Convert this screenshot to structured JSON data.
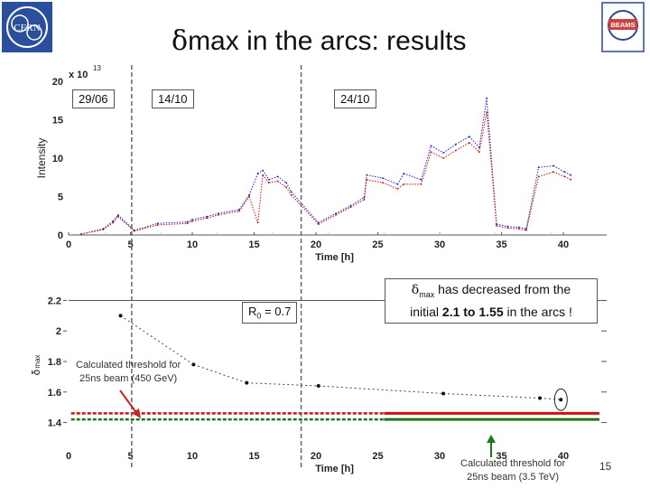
{
  "slide": {
    "title_symbol": "δ",
    "title_rest": "max in the arcs: results",
    "page_number": "15",
    "logos": [
      "cern-logo",
      "beams-logo"
    ],
    "beams_logo_text": "BEAMS",
    "colors": {
      "red": "#d01010",
      "green": "#1a7a1a",
      "blue": "#1f1fd0",
      "dark_red": "#cc2222"
    }
  },
  "date_labels": [
    "29/06",
    "14/10",
    "24/10"
  ],
  "r0_label": {
    "symbol": "R",
    "sub": "0",
    "rest": " = 0.7"
  },
  "note": {
    "symbol": "δ",
    "sub": "max",
    "line1_rest": " has decreased from the",
    "line2_pre": "initial ",
    "v1": "2.1",
    "mid": " to ",
    "v2": "1.55",
    "line2_post": " in the arcs !"
  },
  "threshold_left": {
    "line1": "Calculated threshold for",
    "line2": "25ns beam (450 GeV)"
  },
  "threshold_right": {
    "line1": "Calculated threshold for",
    "line2": "25ns beam (3.5 TeV)"
  },
  "chart_data": [
    {
      "type": "line",
      "xlabel": "Time [h]",
      "ylabel": "Intensity",
      "y_multiplier": "x 10",
      "y_multiplier_exp": "13",
      "xlim": [
        0,
        43.5
      ],
      "ylim": [
        0,
        20
      ],
      "xticks": [
        0,
        5,
        10,
        15,
        20,
        25,
        30,
        35,
        40
      ],
      "yticks": [
        0,
        5,
        10,
        15,
        20
      ],
      "series": [
        {
          "color": "blue",
          "points": [
            [
              1,
              0.1
            ],
            [
              2.8,
              0.8
            ],
            [
              3.6,
              1.8
            ],
            [
              4.0,
              2.6
            ],
            [
              5.3,
              0.6
            ],
            [
              7.2,
              1.5
            ],
            [
              9.6,
              1.7
            ],
            [
              10.0,
              2.0
            ],
            [
              11.2,
              2.4
            ],
            [
              12.1,
              2.8
            ],
            [
              13.8,
              3.3
            ],
            [
              14.6,
              5.2
            ],
            [
              15.3,
              8.0
            ],
            [
              15.7,
              8.4
            ],
            [
              16.2,
              7.2
            ],
            [
              16.9,
              7.6
            ],
            [
              17.6,
              6.8
            ],
            [
              18.0,
              5.6
            ],
            [
              20.2,
              1.6
            ],
            [
              21.6,
              2.8
            ],
            [
              22.8,
              3.8
            ],
            [
              23.9,
              4.9
            ],
            [
              24.1,
              7.8
            ],
            [
              25.4,
              7.4
            ],
            [
              26.6,
              6.6
            ],
            [
              27.1,
              8.0
            ],
            [
              28.5,
              7.2
            ],
            [
              29.3,
              11.6
            ],
            [
              30.3,
              10.7
            ],
            [
              31.3,
              11.8
            ],
            [
              32.4,
              12.8
            ],
            [
              33.2,
              11.4
            ],
            [
              33.8,
              17.8
            ],
            [
              34.6,
              1.4
            ],
            [
              35.5,
              1.1
            ],
            [
              36.4,
              1.0
            ],
            [
              37.0,
              0.8
            ],
            [
              38.0,
              8.8
            ],
            [
              39.2,
              9.0
            ],
            [
              40.1,
              8.2
            ],
            [
              40.6,
              7.8
            ]
          ]
        },
        {
          "color": "red",
          "points": [
            [
              1,
              0.1
            ],
            [
              2.8,
              0.7
            ],
            [
              3.6,
              1.6
            ],
            [
              4.0,
              2.4
            ],
            [
              5.3,
              0.5
            ],
            [
              7.2,
              1.3
            ],
            [
              9.6,
              1.5
            ],
            [
              10.0,
              1.8
            ],
            [
              11.2,
              2.2
            ],
            [
              12.1,
              2.6
            ],
            [
              13.8,
              3.1
            ],
            [
              14.6,
              5.0
            ],
            [
              15.3,
              1.6
            ],
            [
              15.7,
              7.8
            ],
            [
              16.2,
              6.8
            ],
            [
              16.9,
              7.0
            ],
            [
              17.6,
              6.2
            ],
            [
              18.0,
              5.2
            ],
            [
              20.2,
              1.4
            ],
            [
              21.6,
              2.6
            ],
            [
              22.8,
              3.6
            ],
            [
              23.9,
              4.6
            ],
            [
              24.1,
              7.2
            ],
            [
              25.4,
              6.8
            ],
            [
              26.6,
              6.0
            ],
            [
              27.1,
              6.6
            ],
            [
              28.5,
              6.6
            ],
            [
              29.3,
              10.8
            ],
            [
              30.3,
              10.0
            ],
            [
              31.3,
              11.0
            ],
            [
              32.4,
              12.0
            ],
            [
              33.2,
              10.8
            ],
            [
              33.8,
              16.0
            ],
            [
              34.6,
              1.2
            ],
            [
              35.5,
              0.9
            ],
            [
              36.4,
              0.8
            ],
            [
              37.0,
              0.6
            ],
            [
              38.0,
              7.6
            ],
            [
              39.2,
              8.2
            ],
            [
              40.1,
              7.6
            ],
            [
              40.6,
              7.2
            ]
          ]
        }
      ]
    },
    {
      "type": "scatter",
      "xlabel": "Time [h]",
      "ylabel": "δ",
      "ylabel_sub": "max",
      "xlim": [
        0,
        43.5
      ],
      "ylim": [
        1.35,
        2.25
      ],
      "xticks": [
        0,
        5,
        10,
        15,
        20,
        25,
        30,
        35,
        40
      ],
      "xtick_labels": [
        "0",
        "5",
        "10",
        "15",
        "20",
        "25",
        "30",
        "35",
        "40"
      ],
      "yticks": [
        1.4,
        1.6,
        1.8,
        2,
        2.2
      ],
      "series": [
        {
          "name": "",
          "x": [
            4.2,
            10.1,
            14.4,
            20.2,
            30.3,
            38.1,
            39.8
          ],
          "y": [
            2.1,
            1.78,
            1.66,
            1.64,
            1.59,
            1.56,
            1.55
          ]
        }
      ],
      "thresholds": [
        {
          "color": "red",
          "y": 1.46
        },
        {
          "color": "green",
          "y": 1.42
        }
      ]
    }
  ]
}
